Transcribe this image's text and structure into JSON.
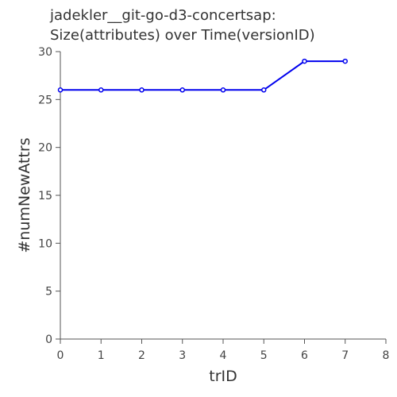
{
  "chart_data": {
    "type": "line",
    "title_lines": [
      "jadekler__git-go-d3-concertsap:",
      "Size(attributes) over Time(versionID)"
    ],
    "xlabel": "trID",
    "ylabel": "#numNewAttrs",
    "x": [
      0,
      1,
      2,
      3,
      4,
      5,
      6,
      7
    ],
    "series": [
      {
        "values": [
          26,
          26,
          26,
          26,
          26,
          26,
          29,
          29
        ],
        "color": "#0000ee"
      }
    ],
    "xlim": [
      0,
      8
    ],
    "ylim": [
      0,
      30
    ],
    "xticks": [
      "0",
      "1",
      "2",
      "3",
      "4",
      "5",
      "6",
      "7",
      "8"
    ],
    "yticks": [
      "0",
      "5",
      "10",
      "15",
      "20",
      "25",
      "30"
    ],
    "grid": false,
    "legend": "none"
  }
}
